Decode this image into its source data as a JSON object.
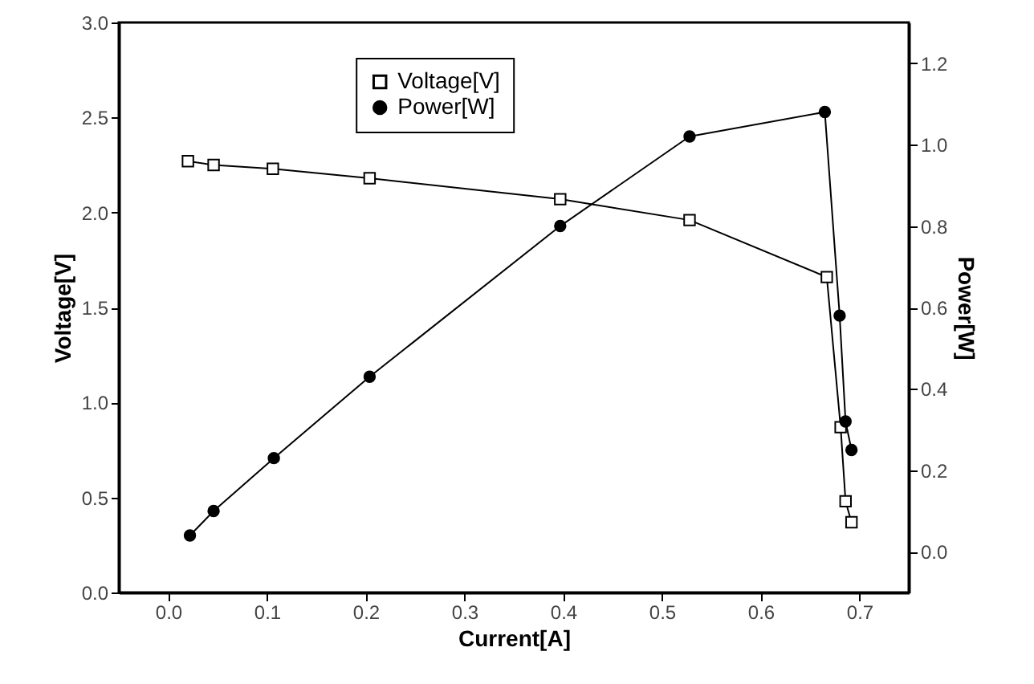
{
  "chart_data": {
    "type": "line",
    "xlabel": "Current[A]",
    "ylabel": "Voltage[V]",
    "y2label": "Power[W]",
    "xlim": [
      -0.05,
      0.75
    ],
    "xticks": [
      {
        "value": 0,
        "label": "0.0"
      },
      0.1,
      0.2,
      0.3,
      0.4,
      0.5,
      0.6,
      0.7
    ],
    "ylim": [
      0.0,
      3.0
    ],
    "yticks": [
      {
        "value": 0,
        "label": "0.0"
      },
      0.5,
      {
        "value": 1,
        "label": "1.0"
      },
      1.5,
      {
        "value": 2,
        "label": "2.0"
      },
      2.5,
      {
        "value": 3,
        "label": "3.0"
      }
    ],
    "y2lim": [
      -0.1,
      1.3
    ],
    "y2ticks": [
      {
        "value": 0,
        "label": "0.0"
      },
      0.2,
      0.4,
      0.6,
      0.8,
      {
        "value": 1,
        "label": "1.0"
      },
      1.2
    ],
    "grid": false,
    "legend": "top",
    "line_style": "solid",
    "series": [
      {
        "name": "Voltage[V]",
        "color": "#000000",
        "marker": "square",
        "x": [
          0.02,
          0.046,
          0.106,
          0.204,
          0.397,
          0.528,
          0.667,
          0.681,
          0.686,
          0.692
        ],
        "values": [
          2.27,
          2.25,
          2.23,
          2.18,
          2.07,
          1.96,
          1.66,
          0.87,
          0.48,
          0.37
        ]
      },
      {
        "name": "Power[W]",
        "color": "#000000",
        "marker": "circle",
        "axis": "y2",
        "x": [
          0.022,
          0.046,
          0.107,
          0.204,
          0.397,
          0.528,
          0.665,
          0.68,
          0.686,
          0.692
        ],
        "values": [
          0.04,
          0.1,
          0.23,
          0.43,
          0.8,
          1.02,
          1.08,
          0.58,
          0.32,
          0.25
        ]
      }
    ]
  }
}
